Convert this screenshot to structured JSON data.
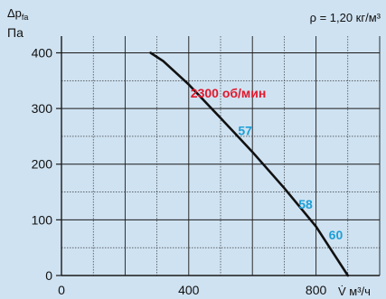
{
  "chart_data": {
    "type": "line",
    "density_label": "ρ = 1,20 кг/м³",
    "ylabel_top": "Δpfa",
    "ylabel_unit": "Па",
    "xlabel": "V̇ м³/ч",
    "xlim": [
      0,
      1000
    ],
    "ylim": [
      0,
      430
    ],
    "x_ticks": [
      0,
      400,
      800
    ],
    "y_ticks": [
      0,
      100,
      200,
      300,
      400
    ],
    "grid": true,
    "curve": {
      "label": "2300 об/мин",
      "label_at": [
        400,
        320
      ],
      "points": [
        [
          280,
          400
        ],
        [
          320,
          385
        ],
        [
          400,
          343
        ],
        [
          500,
          283
        ],
        [
          600,
          222
        ],
        [
          700,
          157
        ],
        [
          800,
          88
        ],
        [
          850,
          44
        ],
        [
          900,
          0
        ]
      ]
    },
    "efficiency_labels": [
      {
        "text": "57",
        "x": 555,
        "y": 252
      },
      {
        "text": "58",
        "x": 745,
        "y": 120
      },
      {
        "text": "60",
        "x": 840,
        "y": 65
      }
    ],
    "colors": {
      "background": "#cfe2f1",
      "curve": "#111111",
      "speed_label": "#e2172b",
      "efficiency_label": "#1d9fd6",
      "grid": "#1a1a1a"
    }
  }
}
